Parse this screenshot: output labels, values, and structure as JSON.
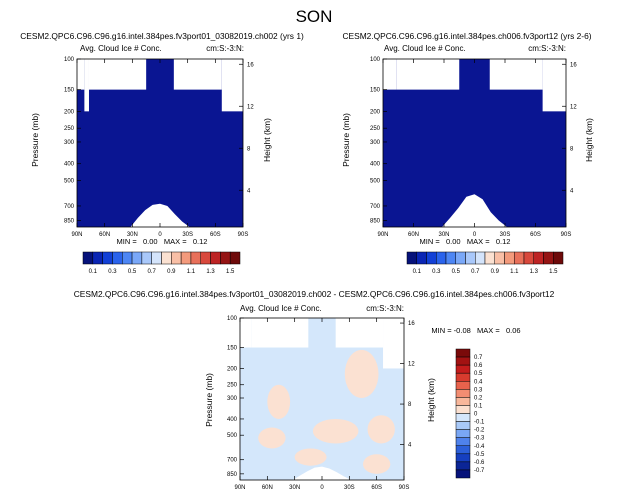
{
  "page_title": "SON",
  "chart_data": [
    {
      "type": "heatmap",
      "title": "CESM2.QPC6.C96.C96.g16.intel.384pes.fv3port01_03082019.ch002 (yrs 1)",
      "subtitle_left": "Avg. Cloud Ice # Conc.",
      "subtitle_right": "cm:S:-3:N:",
      "ylabel": "Pressure (mb)",
      "ylabel_right": "Height (km)",
      "x_ticks": [
        "90N",
        "60N",
        "30N",
        "0",
        "30S",
        "60S",
        "90S"
      ],
      "x_values": [
        90,
        60,
        30,
        0,
        -30,
        -60,
        -90
      ],
      "y_ticks": [
        "100",
        "150",
        "200",
        "250",
        "300",
        "400",
        "500",
        "700",
        "850"
      ],
      "y_values": [
        100,
        150,
        200,
        250,
        300,
        400,
        500,
        700,
        850
      ],
      "ylim": [
        100,
        925
      ],
      "y_scale": "log",
      "height_ticks": [
        "16",
        "12",
        "8",
        "4"
      ],
      "height_values": [
        16,
        12,
        8,
        4
      ],
      "stats": "MIN =   0.00   MAX =   0.12",
      "fill_color": "#0a1592",
      "missing_regions": [
        {
          "lat": [
            90,
            82
          ],
          "p_top": 100,
          "p_bottom": 150
        },
        {
          "lat": [
            82,
            77
          ],
          "p_top": 100,
          "p_bottom": 200
        },
        {
          "lat": [
            77,
            15
          ],
          "p_top": 100,
          "p_bottom": 150
        },
        {
          "lat": [
            -15,
            -67
          ],
          "p_top": 100,
          "p_bottom": 150
        },
        {
          "lat": [
            -67,
            -90
          ],
          "p_top": 100,
          "p_bottom": 200
        }
      ],
      "terrain": {
        "lat": [
          -32,
          -24,
          -16,
          -8,
          0,
          8,
          16,
          24,
          32
        ],
        "p": [
          925,
          860,
          780,
          700,
          680,
          690,
          740,
          820,
          925
        ]
      }
    },
    {
      "type": "heatmap",
      "title": "CESM2.QPC6.C96.C96.g16.intel.384pes.ch006.fv3port12 (yrs 2-6)",
      "subtitle_left": "Avg. Cloud Ice # Conc.",
      "subtitle_right": "cm:S:-3:N:",
      "ylabel": "Pressure (mb)",
      "ylabel_right": "Height (km)",
      "x_ticks": [
        "90N",
        "60N",
        "30N",
        "0",
        "30S",
        "60S",
        "90S"
      ],
      "x_values": [
        90,
        60,
        30,
        0,
        -30,
        -60,
        -90
      ],
      "y_ticks": [
        "100",
        "150",
        "200",
        "250",
        "300",
        "400",
        "500",
        "700",
        "850"
      ],
      "y_values": [
        100,
        150,
        200,
        250,
        300,
        400,
        500,
        700,
        850
      ],
      "ylim": [
        100,
        925
      ],
      "y_scale": "log",
      "height_ticks": [
        "16",
        "12",
        "8",
        "4"
      ],
      "height_values": [
        16,
        12,
        8,
        4
      ],
      "stats": "MIN =   0.00   MAX =   0.12",
      "fill_color": "#0a1592",
      "missing_regions": [
        {
          "lat": [
            90,
            77
          ],
          "p_top": 100,
          "p_bottom": 150
        },
        {
          "lat": [
            77,
            15
          ],
          "p_top": 100,
          "p_bottom": 150
        },
        {
          "lat": [
            -15,
            -67
          ],
          "p_top": 100,
          "p_bottom": 150
        },
        {
          "lat": [
            -67,
            -90
          ],
          "p_top": 100,
          "p_bottom": 200
        }
      ],
      "terrain": {
        "lat": [
          -32,
          -24,
          -16,
          -8,
          0,
          8,
          16,
          24,
          32
        ],
        "p": [
          925,
          850,
          760,
          640,
          600,
          620,
          720,
          820,
          925
        ]
      }
    },
    {
      "type": "heatmap",
      "title": "CESM2.QPC6.C96.C96.g16.intel.384pes.fv3port01_03082019.ch002 - CESM2.QPC6.C96.C96.g16.intel.384pes.ch006.fv3port12",
      "subtitle_left": "Avg. Cloud Ice # Conc.",
      "subtitle_right": "cm:S:-3:N:",
      "ylabel": "Pressure (mb)",
      "ylabel_right": "Height (km)",
      "x_ticks": [
        "90N",
        "60N",
        "30N",
        "0",
        "30S",
        "60S",
        "90S"
      ],
      "x_values": [
        90,
        60,
        30,
        0,
        -30,
        -60,
        -90
      ],
      "y_ticks": [
        "100",
        "150",
        "200",
        "250",
        "300",
        "400",
        "500",
        "700",
        "850"
      ],
      "y_values": [
        100,
        150,
        200,
        250,
        300,
        400,
        500,
        700,
        850
      ],
      "ylim": [
        100,
        925
      ],
      "y_scale": "log",
      "height_ticks": [
        "16",
        "12",
        "8",
        "4"
      ],
      "height_values": [
        16,
        12,
        8,
        4
      ],
      "stats": "MIN = -0.08   MAX =   0.06",
      "background_color": "#d4e7fb",
      "patch_color": "#fbe1d2",
      "missing_regions": [
        {
          "lat": [
            90,
            77
          ],
          "p_top": 100,
          "p_bottom": 150
        },
        {
          "lat": [
            77,
            15
          ],
          "p_top": 100,
          "p_bottom": 150
        },
        {
          "lat": [
            -15,
            -67
          ],
          "p_top": 100,
          "p_bottom": 150
        },
        {
          "lat": [
            -67,
            -90
          ],
          "p_top": 100,
          "p_bottom": 200
        }
      ],
      "terrain": {
        "lat": [
          -32,
          -24,
          -16,
          -8,
          0,
          8,
          16,
          24,
          32
        ],
        "p": [
          925,
          880,
          830,
          790,
          770,
          780,
          820,
          870,
          925
        ]
      },
      "positive_patches": [
        {
          "lat": [
            -25,
            -62
          ],
          "p": [
            155,
            300
          ]
        },
        {
          "lat": [
            60,
            35
          ],
          "p": [
            250,
            400
          ]
        },
        {
          "lat": [
            70,
            40
          ],
          "p": [
            450,
            600
          ]
        },
        {
          "lat": [
            10,
            -40
          ],
          "p": [
            400,
            560
          ]
        },
        {
          "lat": [
            -50,
            -80
          ],
          "p": [
            380,
            560
          ]
        },
        {
          "lat": [
            30,
            -5
          ],
          "p": [
            600,
            760
          ]
        },
        {
          "lat": [
            -45,
            -75
          ],
          "p": [
            650,
            850
          ]
        }
      ]
    }
  ],
  "colorbar_top": {
    "labels": [
      "0.1",
      "0.3",
      "0.5",
      "0.7",
      "0.9",
      "1.1",
      "1.3",
      "1.5"
    ],
    "colors": [
      "#06127a",
      "#0a25b4",
      "#1240d6",
      "#2a63ec",
      "#4d86f4",
      "#7aa8f8",
      "#a9c8fa",
      "#d4e4fb",
      "#fbe1d1",
      "#f9bfa6",
      "#f39a7c",
      "#e8705a",
      "#d8483c",
      "#bd2324",
      "#951414",
      "#6e0a0a"
    ]
  },
  "colorbar_diff": {
    "labels": [
      "0.7",
      "0.6",
      "0.5",
      "0.4",
      "0.3",
      "0.2",
      "0.1",
      "0",
      "-0.1",
      "-0.2",
      "-0.3",
      "-0.4",
      "-0.5",
      "-0.6",
      "-0.7"
    ],
    "colors": [
      "#7a0a0a",
      "#a31212",
      "#c41c1c",
      "#d83b2e",
      "#e8624c",
      "#f28d72",
      "#f8b79b",
      "#fbe0d0",
      "#d4e6fb",
      "#a8c9f8",
      "#7aa7f4",
      "#4f82ec",
      "#2c5fd9",
      "#163fc0",
      "#0b2596",
      "#06127a"
    ]
  }
}
